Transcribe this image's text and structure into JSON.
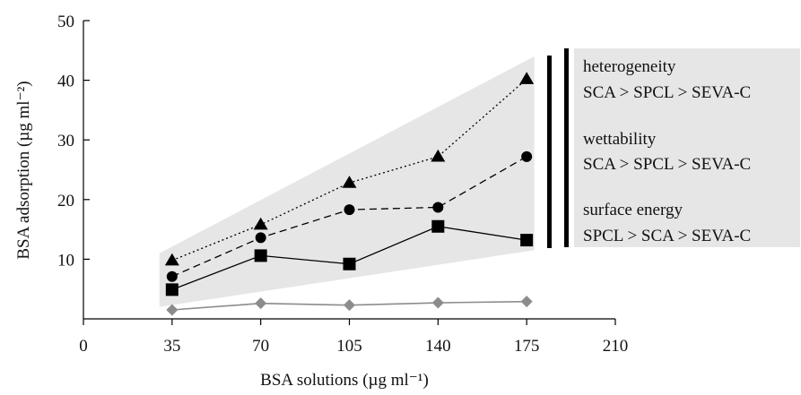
{
  "chart_data": {
    "type": "line",
    "title": "",
    "xlabel": "BSA solutions (µg ml⁻¹)",
    "ylabel": "BSA adsorption (µg ml⁻²)",
    "xlim": [
      0,
      210
    ],
    "ylim": [
      0,
      50
    ],
    "x_ticks": [
      0,
      35,
      70,
      105,
      140,
      175,
      210
    ],
    "y_ticks": [
      10,
      20,
      30,
      40,
      50
    ],
    "y_tick_labels": [
      "10",
      "20",
      "30",
      "40",
      "50"
    ],
    "x_tick_labels": [
      "0",
      "35",
      "70",
      "105",
      "140",
      "175",
      "210"
    ],
    "grid": false,
    "x": [
      35,
      70,
      105,
      140,
      175
    ],
    "series": [
      {
        "marker": "triangle",
        "line": "dotted",
        "color": "#000000",
        "values": [
          9.8,
          15.8,
          22.8,
          27.2,
          40.2
        ]
      },
      {
        "marker": "circle",
        "line": "dashed",
        "color": "#000000",
        "values": [
          7.1,
          13.6,
          18.3,
          18.7,
          27.2
        ]
      },
      {
        "marker": "square",
        "line": "solid",
        "color": "#000000",
        "values": [
          4.9,
          10.6,
          9.2,
          15.5,
          13.2
        ]
      },
      {
        "marker": "diamond",
        "line": "solid",
        "color": "#8c8c8c",
        "values": [
          1.5,
          2.6,
          2.3,
          2.7,
          2.9
        ]
      }
    ],
    "band": {
      "x": [
        30,
        178
      ],
      "lower": [
        2.0,
        11.5
      ],
      "upper": [
        11.0,
        44.0
      ],
      "color": "#e6e6e6"
    },
    "annotations": [
      {
        "heading": "heterogeneity",
        "ranking": "SCA > SPCL > SEVA-C"
      },
      {
        "heading": "wettability",
        "ranking": "SCA > SPCL > SEVA-C"
      },
      {
        "heading": "surface energy",
        "ranking": "SPCL > SCA > SEVA-C"
      }
    ]
  }
}
